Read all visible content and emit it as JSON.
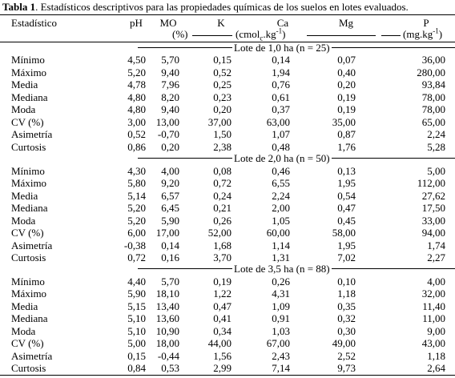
{
  "caption": {
    "label": "Tabla 1",
    "text": ". Estadísticos descriptivos para las propiedades químicas de los suelos en lotes evaluados."
  },
  "header": {
    "columns": [
      "Estadístico",
      "pH",
      "MO",
      "K",
      "Ca",
      "Mg",
      "P"
    ],
    "mo_unit": "(%)",
    "cmol_unit": {
      "start": "(cmol",
      "sub": "c",
      "mid": ".kg",
      "sup": "-1",
      "end": ")"
    },
    "mg_unit": {
      "start": "(mg.kg",
      "sup": "-1",
      "end": ")"
    }
  },
  "groups": [
    {
      "title": "Lote de 1,0 ha (n = 25)",
      "rows": [
        [
          "Mínimo",
          "4,50",
          "5,70",
          "0,15",
          "0,14",
          "0,07",
          "36,00"
        ],
        [
          "Máximo",
          "5,20",
          "9,40",
          "0,52",
          "1,94",
          "0,40",
          "280,00"
        ],
        [
          "Media",
          "4,78",
          "7,96",
          "0,25",
          "0,76",
          "0,20",
          "93,84"
        ],
        [
          "Mediana",
          "4,80",
          "8,20",
          "0,23",
          "0,61",
          "0,19",
          "78,00"
        ],
        [
          "Moda",
          "4,80",
          "9,40",
          "0,20",
          "0,37",
          "0,19",
          "78,00"
        ],
        [
          "CV (%)",
          "3,00",
          "13,00",
          "37,00",
          "63,00",
          "35,00",
          "65,00"
        ],
        [
          "Asimetría",
          "0,52",
          "-0,70",
          "1,50",
          "1,07",
          "0,87",
          "2,24"
        ],
        [
          "Curtosis",
          "0,86",
          "0,20",
          "2,38",
          "0,48",
          "1,76",
          "5,28"
        ]
      ]
    },
    {
      "title": "Lote de 2,0 ha (n = 50)",
      "rows": [
        [
          "Mínimo",
          "4,30",
          "4,00",
          "0,08",
          "0,46",
          "0,13",
          "5,00"
        ],
        [
          "Máximo",
          "5,80",
          "9,20",
          "0,72",
          "6,55",
          "1,95",
          "112,00"
        ],
        [
          "Media",
          "5,14",
          "6,57",
          "0,24",
          "2,24",
          "0,54",
          "27,62"
        ],
        [
          "Mediana",
          "5,20",
          "6,45",
          "0,21",
          "2,00",
          "0,47",
          "17,50"
        ],
        [
          "Moda",
          "5,20",
          "5,90",
          "0,26",
          "1,05",
          "0,45",
          "33,00"
        ],
        [
          "CV (%)",
          "6,00",
          "17,00",
          "52,00",
          "60,00",
          "58,00",
          "94,00"
        ],
        [
          "Asimetría",
          "-0,38",
          "0,14",
          "1,68",
          "1,14",
          "1,95",
          "1,74"
        ],
        [
          "Curtosis",
          "0,72",
          "0,16",
          "3,70",
          "1,31",
          "7,02",
          "2,27"
        ]
      ]
    },
    {
      "title": "Lote de 3,5 ha (n = 88)",
      "rows": [
        [
          "Mínimo",
          "4,40",
          "5,70",
          "0,19",
          "0,26",
          "0,10",
          "4,00"
        ],
        [
          "Máximo",
          "5,90",
          "18,10",
          "1,22",
          "4,31",
          "1,18",
          "32,00"
        ],
        [
          "Media",
          "5,15",
          "13,40",
          "0,47",
          "1,09",
          "0,35",
          "11,40"
        ],
        [
          "Mediana",
          "5,10",
          "13,60",
          "0,41",
          "0,91",
          "0,32",
          "11,00"
        ],
        [
          "Moda",
          "5,10",
          "10,90",
          "0,34",
          "1,03",
          "0,30",
          "9,00"
        ],
        [
          "CV (%)",
          "5,00",
          "18,00",
          "44,00",
          "67,00",
          "49,00",
          "43,00"
        ],
        [
          "Asimetría",
          "0,15",
          "-0,44",
          "1,56",
          "2,43",
          "2,52",
          "1,18"
        ],
        [
          "Curtosis",
          "0,84",
          "0,53",
          "2,99",
          "7,14",
          "9,73",
          "2,64"
        ]
      ]
    }
  ]
}
